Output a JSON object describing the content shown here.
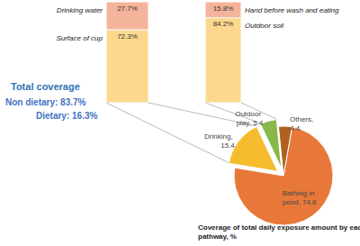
{
  "chart_data": [
    {
      "type": "pie",
      "title": "Coverage of total daily exposure amount by each pathway, %",
      "annotations": [
        "Total coverage",
        "Non dietary: 83.7%",
        "Dietary: 16.3%"
      ],
      "categories": [
        "Bathing in pond",
        "Drinking",
        "Outdoor play",
        "Others"
      ],
      "values": [
        74.8,
        15.4,
        5.4,
        4.4
      ],
      "value_labels": [
        "Bathing in pond, 74.8",
        "Drinking, 15.4",
        "Outdoor play, 5.4",
        "Others, 4.4"
      ],
      "colors": [
        "#e8783a",
        "#f5bd2e",
        "#86b84a",
        "#b0611f"
      ],
      "data_labels": true
    },
    {
      "type": "bar",
      "stacked": true,
      "categories": [
        null
      ],
      "series": [
        {
          "name": "Surface of cup",
          "color": "#fcd88e",
          "values": [
            72.3
          ],
          "value_labels": [
            "72.3%"
          ]
        },
        {
          "name": "Drinking water",
          "color": "#f4b49b",
          "values": [
            27.7
          ],
          "value_labels": [
            "27.7%"
          ]
        }
      ],
      "ylim": [
        0,
        100
      ],
      "data_labels": true,
      "tick_labels": false
    },
    {
      "type": "bar",
      "stacked": true,
      "categories": [
        null
      ],
      "series": [
        {
          "name": "Outdoor soil",
          "color": "#fcd88e",
          "values": [
            84.2
          ],
          "value_labels": [
            "84.2%"
          ]
        },
        {
          "name": "Hand before wash and eating",
          "color": "#f4b49b",
          "values": [
            15.8
          ],
          "value_labels": [
            "15.8%"
          ]
        }
      ],
      "ylim": [
        0,
        100
      ],
      "data_labels": true,
      "tick_labels": false
    }
  ]
}
